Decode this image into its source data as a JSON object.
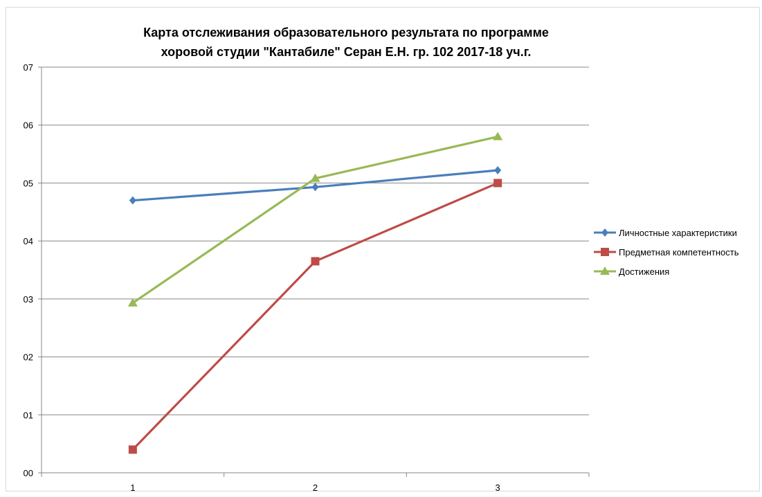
{
  "chart_data": {
    "type": "line",
    "title_lines": [
      "Карта отслеживания образовательного результата по  программе",
      "хоровой студии \"Кантабиле\" Серан Е.Н. гр. 102 2017-18 уч.г."
    ],
    "categories": [
      "1",
      "2",
      "3"
    ],
    "y_ticks": [
      "00",
      "01",
      "02",
      "03",
      "04",
      "05",
      "06",
      "07"
    ],
    "ylim": [
      0,
      7
    ],
    "grid": true,
    "legend_position": "right",
    "series": [
      {
        "name": "Личностные характеристики",
        "color": "#4a7ebb",
        "marker": "diamond",
        "values": [
          4.7,
          4.93,
          5.22
        ]
      },
      {
        "name": "Предметная компетентность",
        "color": "#be4b48",
        "marker": "square",
        "values": [
          0.4,
          3.65,
          5.0
        ]
      },
      {
        "name": "Достижения",
        "color": "#98b954",
        "marker": "triangle",
        "values": [
          2.93,
          5.08,
          5.8
        ]
      }
    ]
  }
}
